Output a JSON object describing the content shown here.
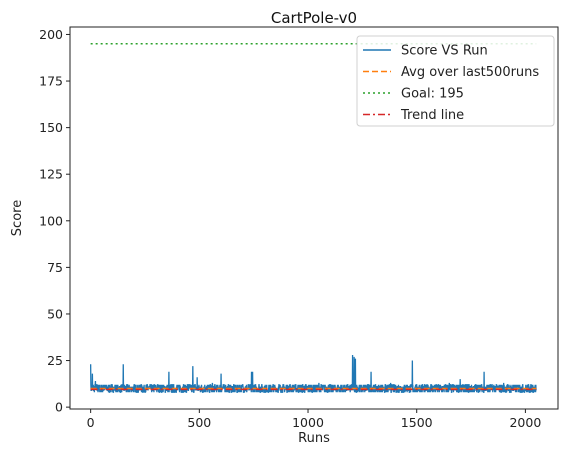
{
  "chart_data": {
    "type": "line",
    "title": "CartPole-v0",
    "xlabel": "Runs",
    "ylabel": "Score",
    "xlim": [
      -95,
      2150
    ],
    "ylim": [
      -1,
      204
    ],
    "xticks": [
      0,
      500,
      1000,
      1500,
      2000
    ],
    "yticks": [
      0,
      25,
      50,
      75,
      100,
      125,
      150,
      175,
      200
    ],
    "grid": false,
    "legend_position": "top-right",
    "series": [
      {
        "name": "Score VS Run",
        "color": "#1f77b4",
        "style": "solid",
        "n_points": 2050,
        "baseline_range": [
          8,
          12
        ],
        "spikes": [
          {
            "x": 0,
            "y": 23
          },
          {
            "x": 8,
            "y": 18
          },
          {
            "x": 22,
            "y": 14
          },
          {
            "x": 60,
            "y": 12
          },
          {
            "x": 150,
            "y": 23
          },
          {
            "x": 230,
            "y": 12
          },
          {
            "x": 360,
            "y": 19
          },
          {
            "x": 410,
            "y": 12
          },
          {
            "x": 470,
            "y": 22
          },
          {
            "x": 490,
            "y": 16
          },
          {
            "x": 560,
            "y": 13
          },
          {
            "x": 600,
            "y": 18
          },
          {
            "x": 700,
            "y": 12
          },
          {
            "x": 740,
            "y": 19
          },
          {
            "x": 745,
            "y": 19
          },
          {
            "x": 900,
            "y": 12
          },
          {
            "x": 1050,
            "y": 13
          },
          {
            "x": 1205,
            "y": 28
          },
          {
            "x": 1212,
            "y": 27
          },
          {
            "x": 1218,
            "y": 26
          },
          {
            "x": 1290,
            "y": 19
          },
          {
            "x": 1380,
            "y": 13
          },
          {
            "x": 1480,
            "y": 25
          },
          {
            "x": 1600,
            "y": 12
          },
          {
            "x": 1650,
            "y": 13
          },
          {
            "x": 1700,
            "y": 15
          },
          {
            "x": 1810,
            "y": 19
          },
          {
            "x": 1900,
            "y": 13
          }
        ]
      },
      {
        "name": "Avg over last500runs",
        "color": "#ff7f0e",
        "style": "dashed",
        "x": [
          0,
          2050
        ],
        "y": [
          10,
          10
        ]
      },
      {
        "name": "Goal: 195",
        "color": "#2ca02c",
        "style": "dotted",
        "x": [
          0,
          2050
        ],
        "y": [
          195,
          195
        ]
      },
      {
        "name": "Trend line",
        "color": "#d62728",
        "style": "dashdot",
        "x": [
          0,
          2050
        ],
        "y": [
          9.5,
          9.5
        ]
      }
    ]
  }
}
